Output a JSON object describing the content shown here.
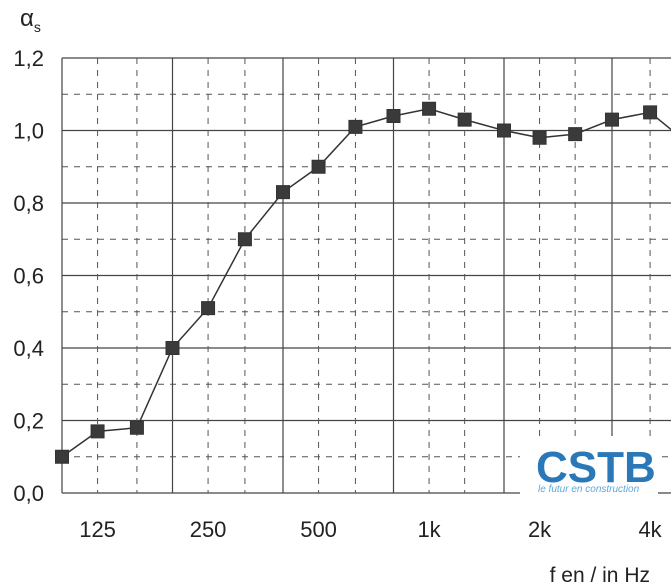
{
  "chart_data": {
    "type": "line",
    "title": "",
    "ylabel": "α",
    "ylabel_sub": "s",
    "xlabel": "f en / in Hz",
    "ylim": [
      0.0,
      1.2
    ],
    "ytick_labels": [
      "0,0",
      "0,2",
      "0,4",
      "0,6",
      "0,8",
      "1,0",
      "1,2"
    ],
    "ytick_values": [
      0.0,
      0.2,
      0.4,
      0.6,
      0.8,
      1.0,
      1.2
    ],
    "xtick_labels": [
      "125",
      "250",
      "500",
      "1k",
      "2k",
      "4k"
    ],
    "xtick_values": [
      125,
      250,
      500,
      1000,
      2000,
      4000
    ],
    "x_scale": "log (third-octave bands)",
    "grid": true,
    "series": [
      {
        "x": [
          100,
          125,
          160,
          200,
          250,
          315,
          400,
          500,
          630,
          800,
          1000,
          1250,
          1600,
          2000,
          2500,
          3150,
          4000,
          5000
        ],
        "values": [
          0.1,
          0.17,
          0.18,
          0.4,
          0.51,
          0.7,
          0.83,
          0.9,
          1.01,
          1.04,
          1.06,
          1.03,
          1.0,
          0.98,
          0.99,
          1.03,
          1.05,
          0.97
        ]
      }
    ]
  },
  "logo": {
    "name": "CSTB",
    "tagline": "le futur en construction",
    "color": "#2a78b8"
  }
}
